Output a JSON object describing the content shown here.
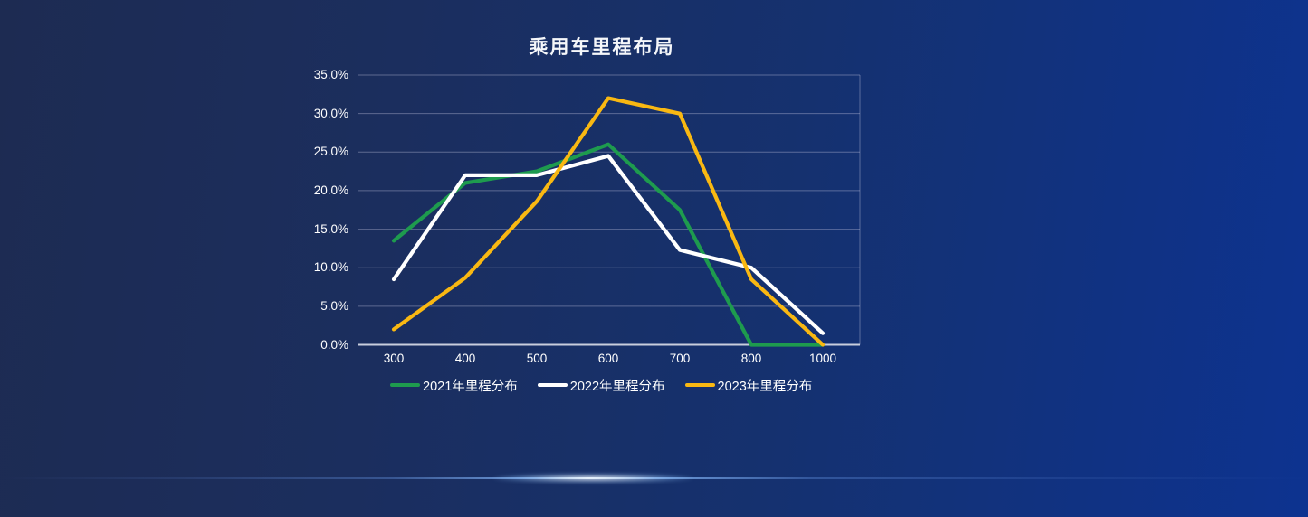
{
  "page": {
    "title": "乘用车里程布局"
  },
  "colors": {
    "background_left": "#1D2B52",
    "background_right": "#0D3390",
    "gridline": "rgba(205,205,230,0.38)",
    "axis_line": "#C9CEDD",
    "label_text": "#FFFFFF",
    "divider_glow": "#9CC8FF"
  },
  "chart_data": {
    "type": "line",
    "title": "乘用车里程布局",
    "xlabel": "",
    "ylabel": "",
    "categories": [
      "300",
      "400",
      "500",
      "600",
      "700",
      "800",
      "1000"
    ],
    "y_ticks": [
      "35.0%",
      "30.0%",
      "25.0%",
      "20.0%",
      "15.0%",
      "10.0%",
      "5.0%",
      "0.0%"
    ],
    "ylim": [
      0,
      35
    ],
    "y_tick_step": 5,
    "grid": true,
    "legend_position": "bottom",
    "series": [
      {
        "name": "2021年里程分布",
        "color": "#1E9B4E",
        "values": [
          13.5,
          21,
          22.5,
          26,
          17.5,
          0,
          0
        ]
      },
      {
        "name": "2022年里程分布",
        "color": "#FFFFFF",
        "values": [
          8.5,
          22,
          22,
          24.5,
          12.3,
          10,
          1.5
        ]
      },
      {
        "name": "2023年里程分布",
        "color": "#F9B812",
        "values": [
          2,
          8.7,
          18.6,
          32,
          30,
          8.5,
          0
        ]
      }
    ]
  }
}
